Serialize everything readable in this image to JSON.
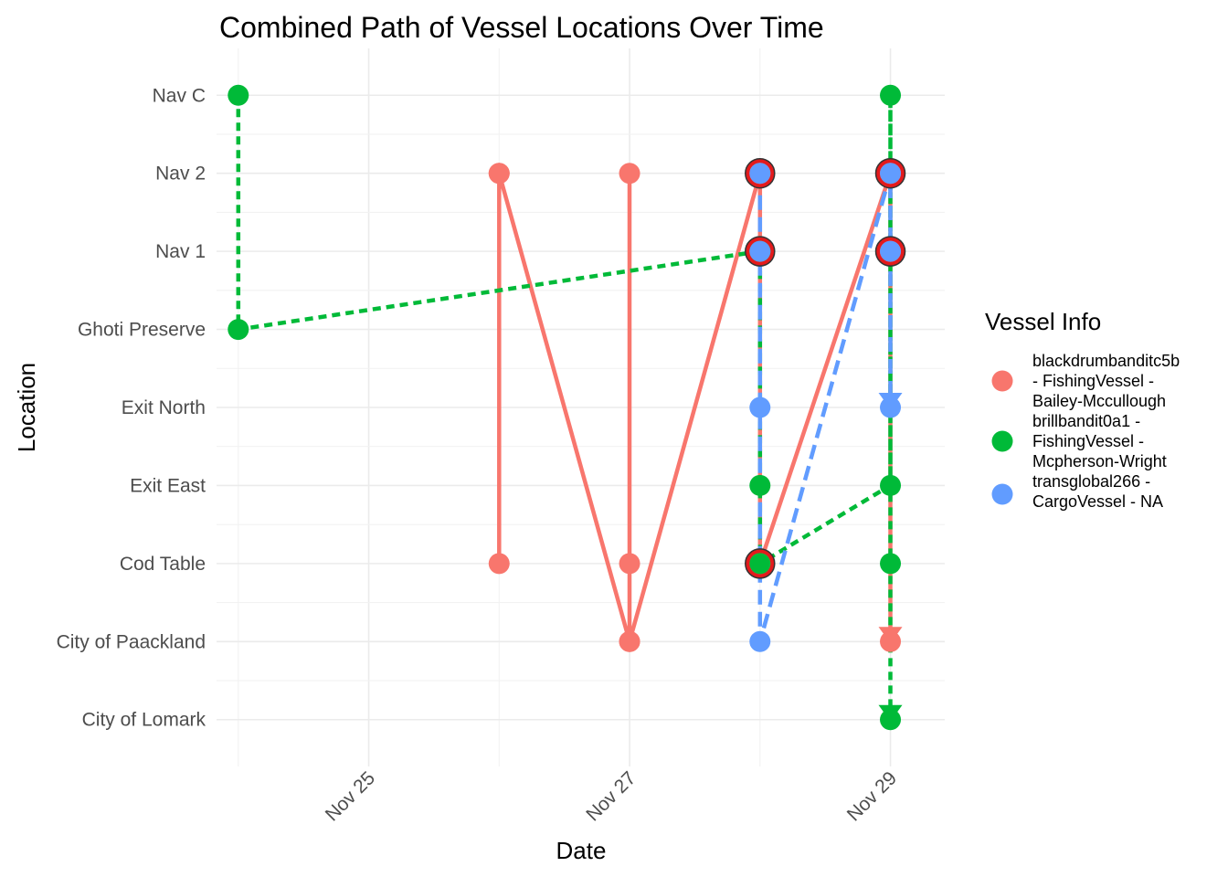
{
  "chart_data": {
    "type": "line",
    "title": "Combined Path of Vessel Locations Over Time",
    "xlabel": "Date",
    "ylabel": "Location",
    "x_ticks": [
      {
        "date": "2035-11-25",
        "label": "Nov 25"
      },
      {
        "date": "2035-11-27",
        "label": "Nov 27"
      },
      {
        "date": "2035-11-29",
        "label": "Nov 29"
      }
    ],
    "xlim": [
      "2035-11-23T20:00",
      "2035-11-29T10:00"
    ],
    "y_categories": [
      "City of Lomark",
      "City of Paackland",
      "Cod Table",
      "Exit East",
      "Exit North",
      "Ghoti Preserve",
      "Nav 1",
      "Nav 2",
      "Nav C"
    ],
    "grid": true,
    "legend_position": "right",
    "legend_title": "Vessel Info",
    "series": [
      {
        "name": "blackdrumbanditc5b - FishingVessel - Bailey-Mccullough",
        "legend_lines": [
          "blackdrumbanditc5b",
          "- FishingVessel -",
          "Bailey-Mccullough"
        ],
        "color": "#F8766D",
        "line_style": "solid",
        "points": [
          {
            "x": "2035-11-26",
            "y": "Nav 2"
          },
          {
            "x": "2035-11-26",
            "y": "Cod Table"
          },
          {
            "x": "2035-11-26",
            "y": "Nav 2"
          },
          {
            "x": "2035-11-27",
            "y": "City of Paackland"
          },
          {
            "x": "2035-11-27",
            "y": "Cod Table"
          },
          {
            "x": "2035-11-27",
            "y": "Nav 2"
          },
          {
            "x": "2035-11-27",
            "y": "City of Paackland"
          },
          {
            "x": "2035-11-28",
            "y": "Nav 2"
          },
          {
            "x": "2035-11-28",
            "y": "Nav 1"
          },
          {
            "x": "2035-11-28",
            "y": "Cod Table"
          },
          {
            "x": "2035-11-29",
            "y": "Nav 2"
          },
          {
            "x": "2035-11-29",
            "y": "Nav 1"
          },
          {
            "x": "2035-11-29",
            "y": "City of Paackland"
          }
        ]
      },
      {
        "name": "brillbandit0a1 - FishingVessel - Mcpherson-Wright",
        "legend_lines": [
          "brillbandit0a1 -",
          "FishingVessel -",
          "Mcpherson-Wright"
        ],
        "color": "#00BA38",
        "line_style": "dotted",
        "points": [
          {
            "x": "2035-11-24",
            "y": "Nav C"
          },
          {
            "x": "2035-11-24",
            "y": "Ghoti Preserve"
          },
          {
            "x": "2035-11-28",
            "y": "Nav 1"
          },
          {
            "x": "2035-11-28",
            "y": "Exit East"
          },
          {
            "x": "2035-11-28",
            "y": "Cod Table"
          },
          {
            "x": "2035-11-29",
            "y": "Exit East"
          },
          {
            "x": "2035-11-29",
            "y": "Nav C"
          },
          {
            "x": "2035-11-29",
            "y": "City of Lomark"
          }
        ],
        "extra_points": [
          {
            "x": "2035-11-29",
            "y": "Cod Table"
          }
        ]
      },
      {
        "name": "transglobal266 - CargoVessel - NA",
        "legend_lines": [
          "transglobal266 -",
          "CargoVessel - NA"
        ],
        "color": "#619CFF",
        "line_style": "dashed",
        "points": [
          {
            "x": "2035-11-28",
            "y": "Nav 2"
          },
          {
            "x": "2035-11-28",
            "y": "Exit North"
          },
          {
            "x": "2035-11-28",
            "y": "City of Paackland"
          },
          {
            "x": "2035-11-29",
            "y": "Nav 2"
          },
          {
            "x": "2035-11-29",
            "y": "Exit North"
          }
        ],
        "extra_points": [
          {
            "x": "2035-11-28",
            "y": "Nav 1"
          },
          {
            "x": "2035-11-29",
            "y": "Nav 1"
          }
        ]
      }
    ],
    "highlighted_points": [
      {
        "x": "2035-11-28",
        "y": "Nav 2"
      },
      {
        "x": "2035-11-28",
        "y": "Nav 1"
      },
      {
        "x": "2035-11-28",
        "y": "Cod Table"
      },
      {
        "x": "2035-11-29",
        "y": "Nav 2"
      },
      {
        "x": "2035-11-29",
        "y": "Nav 1"
      }
    ],
    "highlight_color": "#E41A1C",
    "end_arrows": [
      {
        "series": 0,
        "x": "2035-11-29",
        "y": "City of Paackland"
      },
      {
        "series": 1,
        "x": "2035-11-29",
        "y": "City of Lomark"
      },
      {
        "series": 2,
        "x": "2035-11-29",
        "y": "Exit North"
      }
    ]
  }
}
